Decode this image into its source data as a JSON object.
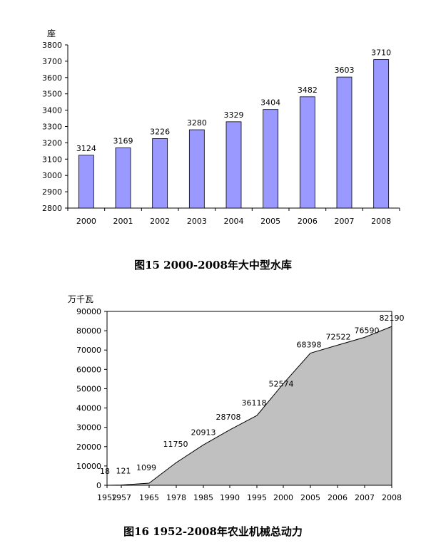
{
  "chart_data": [
    {
      "type": "bar",
      "title": "图15  2000-2008年大中型水库",
      "ylabel": "座",
      "xlabel": "",
      "categories": [
        "2000",
        "2001",
        "2002",
        "2003",
        "2004",
        "2005",
        "2006",
        "2007",
        "2008"
      ],
      "values": [
        3124,
        3169,
        3226,
        3280,
        3329,
        3404,
        3482,
        3603,
        3710
      ],
      "ylim": [
        2800,
        3800
      ],
      "yticks": [
        2800,
        2900,
        3000,
        3100,
        3200,
        3300,
        3400,
        3500,
        3600,
        3700,
        3800
      ],
      "bar_color": "#9999ff",
      "grid": false,
      "legend": "none"
    },
    {
      "type": "area",
      "title": "图16  1952-2008年农业机械总动力",
      "ylabel": "万千瓦",
      "xlabel": "",
      "categories": [
        "1952",
        "1957",
        "1965",
        "1978",
        "1985",
        "1990",
        "1995",
        "2000",
        "2005",
        "2006",
        "2007",
        "2008"
      ],
      "values": [
        18,
        121,
        1099,
        11750,
        20913,
        28708,
        36118,
        52574,
        68398,
        72522,
        76590,
        82190
      ],
      "ylim": [
        0,
        90000
      ],
      "yticks": [
        0,
        10000,
        20000,
        30000,
        40000,
        50000,
        60000,
        70000,
        80000,
        90000
      ],
      "fill_color": "#c0c0c0",
      "grid": false,
      "legend": "none"
    }
  ]
}
